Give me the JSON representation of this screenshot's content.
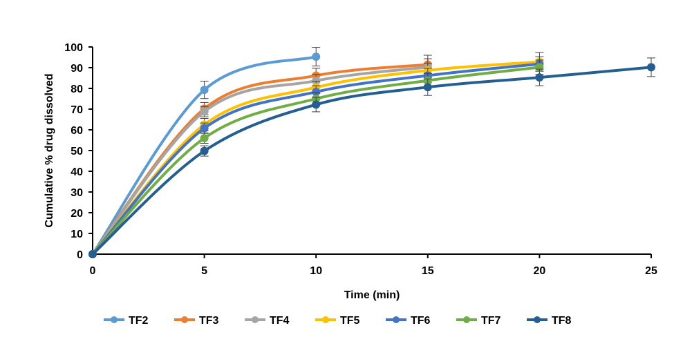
{
  "chart_data": {
    "type": "line",
    "title": "",
    "xlabel": "Time (min)",
    "ylabel": "Cumulative % drug dissolved",
    "xlim": [
      0,
      25
    ],
    "ylim": [
      0,
      100
    ],
    "xticks": [
      0,
      5,
      10,
      15,
      20,
      25
    ],
    "yticks": [
      0,
      10,
      20,
      30,
      40,
      50,
      60,
      70,
      80,
      90,
      100
    ],
    "grid": false,
    "smoothed": true,
    "error_bars": true,
    "legend_position": "bottom",
    "series": [
      {
        "name": "TF2",
        "color": "#5B9BD5",
        "x": [
          0,
          5,
          10
        ],
        "values": [
          0,
          79.3,
          95.3
        ],
        "errors": [
          0,
          4.2,
          4.5
        ]
      },
      {
        "name": "TF3",
        "color": "#ED7D31",
        "x": [
          0,
          5,
          10,
          15
        ],
        "values": [
          0,
          70.2,
          86.2,
          91.5
        ],
        "errors": [
          0,
          3,
          3.5,
          4.5
        ]
      },
      {
        "name": "TF4",
        "color": "#A5A5A5",
        "x": [
          0,
          5,
          10,
          15
        ],
        "values": [
          0,
          68.8,
          83.7,
          90.3
        ],
        "errors": [
          0,
          2.5,
          3,
          4
        ]
      },
      {
        "name": "TF5",
        "color": "#FFC000",
        "x": [
          0,
          5,
          10,
          15,
          20
        ],
        "values": [
          0,
          62.5,
          80.5,
          88.7,
          92.8
        ],
        "errors": [
          0,
          3,
          3,
          3.5,
          4.5
        ]
      },
      {
        "name": "TF6",
        "color": "#4472C4",
        "x": [
          0,
          5,
          10,
          15,
          20
        ],
        "values": [
          0,
          60.8,
          78.3,
          86.2,
          91.8
        ],
        "errors": [
          0,
          2.5,
          3,
          3.5,
          3.5
        ]
      },
      {
        "name": "TF7",
        "color": "#70AD47",
        "x": [
          0,
          5,
          10,
          15,
          20
        ],
        "values": [
          0,
          56,
          75,
          83.8,
          90.2
        ],
        "errors": [
          0,
          2.5,
          3,
          3.5,
          3.5
        ]
      },
      {
        "name": "TF8",
        "color": "#255E91",
        "x": [
          0,
          5,
          10,
          15,
          20,
          25
        ],
        "values": [
          0,
          49.8,
          72.2,
          80.6,
          85.3,
          90.2
        ],
        "errors": [
          0,
          2.5,
          3.5,
          4,
          4,
          4.5
        ]
      }
    ]
  }
}
